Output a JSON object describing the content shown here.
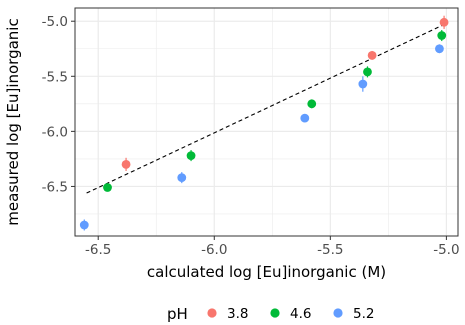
{
  "chart_data": {
    "type": "scatter",
    "xlabel": "calculated log [Eu]inorganic (M)",
    "ylabel": "measured log [Eu]inorganic",
    "xlim": [
      -6.6,
      -4.95
    ],
    "ylim": [
      -6.95,
      -4.88
    ],
    "x_ticks": [
      -6.5,
      -6.0,
      -5.5,
      -5.0
    ],
    "x_tick_labels": [
      "-6.5",
      "-6.0",
      "-5.5",
      "-5.0"
    ],
    "y_ticks": [
      -6.5,
      -6.0,
      -5.5,
      -5.0
    ],
    "y_tick_labels": [
      "-6.5",
      "-6.0",
      "-5.5",
      "-5.0"
    ],
    "grid": true,
    "legend": {
      "title": "pH",
      "placement": "bottom"
    },
    "reference_line": {
      "style": "dashed",
      "x": [
        -6.55,
        -5.0
      ],
      "y": [
        -6.56,
        -5.02
      ],
      "color": "#000000"
    },
    "series": [
      {
        "name": "3.8",
        "color": "#F8766D",
        "points": [
          {
            "x": -6.38,
            "y": -6.3,
            "err": 0.06
          },
          {
            "x": -5.32,
            "y": -5.31,
            "err": 0.04
          },
          {
            "x": -5.01,
            "y": -5.01,
            "err": 0.06
          }
        ]
      },
      {
        "name": "4.6",
        "color": "#00BA38",
        "points": [
          {
            "x": -6.46,
            "y": -6.51,
            "err": 0.03
          },
          {
            "x": -6.1,
            "y": -6.22,
            "err": 0.05
          },
          {
            "x": -5.58,
            "y": -5.75,
            "err": 0.04
          },
          {
            "x": -5.34,
            "y": -5.46,
            "err": 0.05
          },
          {
            "x": -5.02,
            "y": -5.13,
            "err": 0.05
          }
        ]
      },
      {
        "name": "5.2",
        "color": "#619CFF",
        "points": [
          {
            "x": -6.56,
            "y": -6.85,
            "err": 0.05
          },
          {
            "x": -6.14,
            "y": -6.42,
            "err": 0.05
          },
          {
            "x": -5.61,
            "y": -5.88,
            "err": 0.03
          },
          {
            "x": -5.36,
            "y": -5.57,
            "err": 0.07
          },
          {
            "x": -5.03,
            "y": -5.25,
            "err": 0.04
          }
        ]
      }
    ]
  }
}
